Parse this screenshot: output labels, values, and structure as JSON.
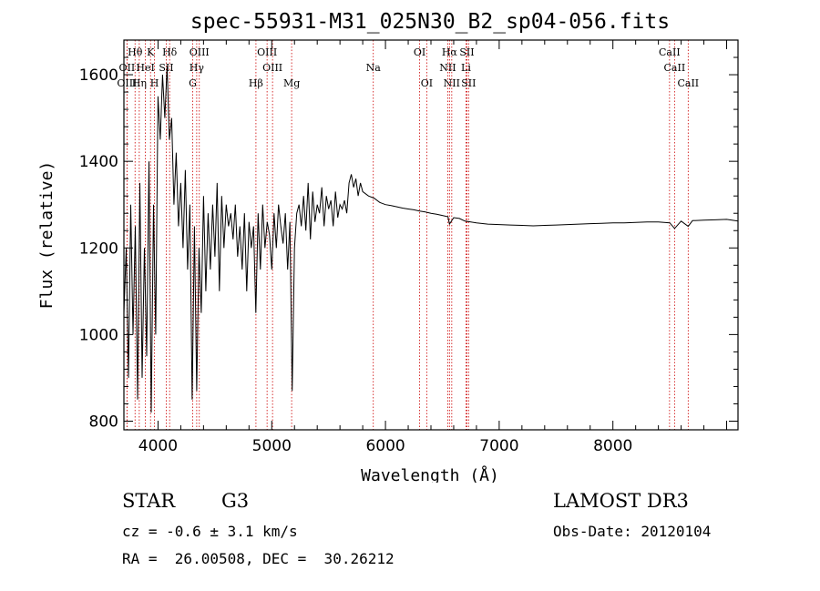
{
  "chart_data": {
    "type": "line",
    "title": "spec-55931-M31_025N30_B2_sp04-056.fits",
    "xlabel": "Wavelength (Å)",
    "ylabel": "Flux (relative)",
    "xlim": [
      3700,
      9100
    ],
    "ylim": [
      780,
      1680
    ],
    "xticks": [
      4000,
      5000,
      6000,
      7000,
      8000
    ],
    "yticks": [
      800,
      1000,
      1200,
      1400,
      1600
    ],
    "series": [
      {
        "name": "flux",
        "x": [
          3700,
          3720,
          3740,
          3760,
          3780,
          3800,
          3820,
          3840,
          3860,
          3880,
          3900,
          3920,
          3940,
          3960,
          3980,
          4000,
          4020,
          4040,
          4060,
          4080,
          4100,
          4120,
          4140,
          4160,
          4180,
          4200,
          4220,
          4240,
          4260,
          4280,
          4300,
          4320,
          4340,
          4360,
          4380,
          4400,
          4420,
          4440,
          4460,
          4480,
          4500,
          4520,
          4540,
          4560,
          4580,
          4600,
          4620,
          4640,
          4660,
          4680,
          4700,
          4720,
          4740,
          4760,
          4780,
          4800,
          4820,
          4840,
          4860,
          4880,
          4900,
          4920,
          4940,
          4960,
          4980,
          5000,
          5020,
          5040,
          5060,
          5080,
          5100,
          5120,
          5140,
          5160,
          5180,
          5200,
          5220,
          5240,
          5260,
          5280,
          5300,
          5320,
          5340,
          5360,
          5380,
          5400,
          5420,
          5440,
          5460,
          5480,
          5500,
          5520,
          5540,
          5560,
          5580,
          5600,
          5620,
          5640,
          5660,
          5680,
          5700,
          5720,
          5740,
          5760,
          5780,
          5800,
          5850,
          5900,
          5950,
          6000,
          6050,
          6100,
          6150,
          6200,
          6250,
          6300,
          6350,
          6400,
          6450,
          6500,
          6550,
          6563,
          6600,
          6650,
          6700,
          6750,
          6800,
          6900,
          7000,
          7100,
          7200,
          7300,
          7400,
          7500,
          7600,
          7700,
          7800,
          7900,
          8000,
          8100,
          8200,
          8300,
          8400,
          8500,
          8542,
          8600,
          8662,
          8700,
          8800,
          8900,
          9000,
          9100
        ],
        "y": [
          1050,
          1200,
          900,
          1300,
          1000,
          1250,
          850,
          1350,
          900,
          1200,
          950,
          1400,
          820,
          1300,
          1000,
          1550,
          1450,
          1600,
          1500,
          1620,
          1450,
          1500,
          1300,
          1420,
          1250,
          1350,
          1200,
          1380,
          1150,
          1300,
          850,
          1250,
          870,
          1200,
          1050,
          1320,
          1100,
          1280,
          1150,
          1300,
          1180,
          1350,
          1100,
          1320,
          1200,
          1300,
          1250,
          1280,
          1220,
          1300,
          1180,
          1250,
          1150,
          1280,
          1100,
          1260,
          1200,
          1250,
          1050,
          1280,
          1150,
          1300,
          1200,
          1260,
          1230,
          1150,
          1280,
          1200,
          1300,
          1250,
          1210,
          1280,
          1150,
          1260,
          870,
          1200,
          1280,
          1300,
          1250,
          1320,
          1240,
          1350,
          1220,
          1330,
          1260,
          1300,
          1280,
          1340,
          1250,
          1320,
          1290,
          1310,
          1250,
          1330,
          1270,
          1300,
          1290,
          1310,
          1280,
          1350,
          1370,
          1340,
          1360,
          1320,
          1350,
          1330,
          1320,
          1315,
          1305,
          1300,
          1298,
          1295,
          1292,
          1290,
          1288,
          1285,
          1283,
          1280,
          1278,
          1275,
          1272,
          1255,
          1270,
          1268,
          1262,
          1260,
          1258,
          1255,
          1254,
          1253,
          1252,
          1251,
          1252,
          1253,
          1254,
          1255,
          1256,
          1257,
          1258,
          1258,
          1259,
          1260,
          1260,
          1258,
          1245,
          1262,
          1250,
          1263,
          1264,
          1265,
          1266,
          1262
        ]
      }
    ],
    "lines": [
      {
        "label": "Hθ",
        "wl": 3798,
        "row": 0
      },
      {
        "label": "K",
        "wl": 3934,
        "row": 0
      },
      {
        "label": "Hδ",
        "wl": 4102,
        "row": 0
      },
      {
        "label": "OIII",
        "wl": 4363,
        "row": 0
      },
      {
        "label": "OIII",
        "wl": 4959,
        "row": 0
      },
      {
        "label": "OI",
        "wl": 6300,
        "row": 0
      },
      {
        "label": "Hα",
        "wl": 6563,
        "row": 0
      },
      {
        "label": "SII",
        "wl": 6716,
        "row": 0
      },
      {
        "label": "CaII",
        "wl": 8498,
        "row": 0
      },
      {
        "label": "OII",
        "wl": 3727,
        "row": 1
      },
      {
        "label": "HeI",
        "wl": 3889,
        "row": 1
      },
      {
        "label": "SII",
        "wl": 4072,
        "row": 1
      },
      {
        "label": "Hγ",
        "wl": 4340,
        "row": 1
      },
      {
        "label": "OIII",
        "wl": 5007,
        "row": 1
      },
      {
        "label": "Na",
        "wl": 5893,
        "row": 1
      },
      {
        "label": "NII",
        "wl": 6548,
        "row": 1
      },
      {
        "label": "Li",
        "wl": 6708,
        "row": 1
      },
      {
        "label": "CaII",
        "wl": 8542,
        "row": 1
      },
      {
        "label": "OIII",
        "wl": 3727,
        "row": 2
      },
      {
        "label": "Hη",
        "wl": 3835,
        "row": 2
      },
      {
        "label": "H",
        "wl": 3969,
        "row": 2
      },
      {
        "label": "G",
        "wl": 4305,
        "row": 2
      },
      {
        "label": "Hβ",
        "wl": 4861,
        "row": 2
      },
      {
        "label": "Mg",
        "wl": 5175,
        "row": 2
      },
      {
        "label": "OI",
        "wl": 6363,
        "row": 2
      },
      {
        "label": "NII",
        "wl": 6583,
        "row": 2
      },
      {
        "label": "SII",
        "wl": 6731,
        "row": 2
      },
      {
        "label": "CaII",
        "wl": 8662,
        "row": 2
      }
    ]
  },
  "info": {
    "object_class": "STAR",
    "subclass": "G3",
    "survey": "LAMOST DR3",
    "cz": "cz = -0.6 ± 3.1 km/s",
    "obs_date": "Obs-Date: 20120104",
    "coords": "RA =  26.00508, DEC =  30.26212"
  },
  "colors": {
    "line_marker": "#cc0000",
    "spectrum": "#000000"
  }
}
